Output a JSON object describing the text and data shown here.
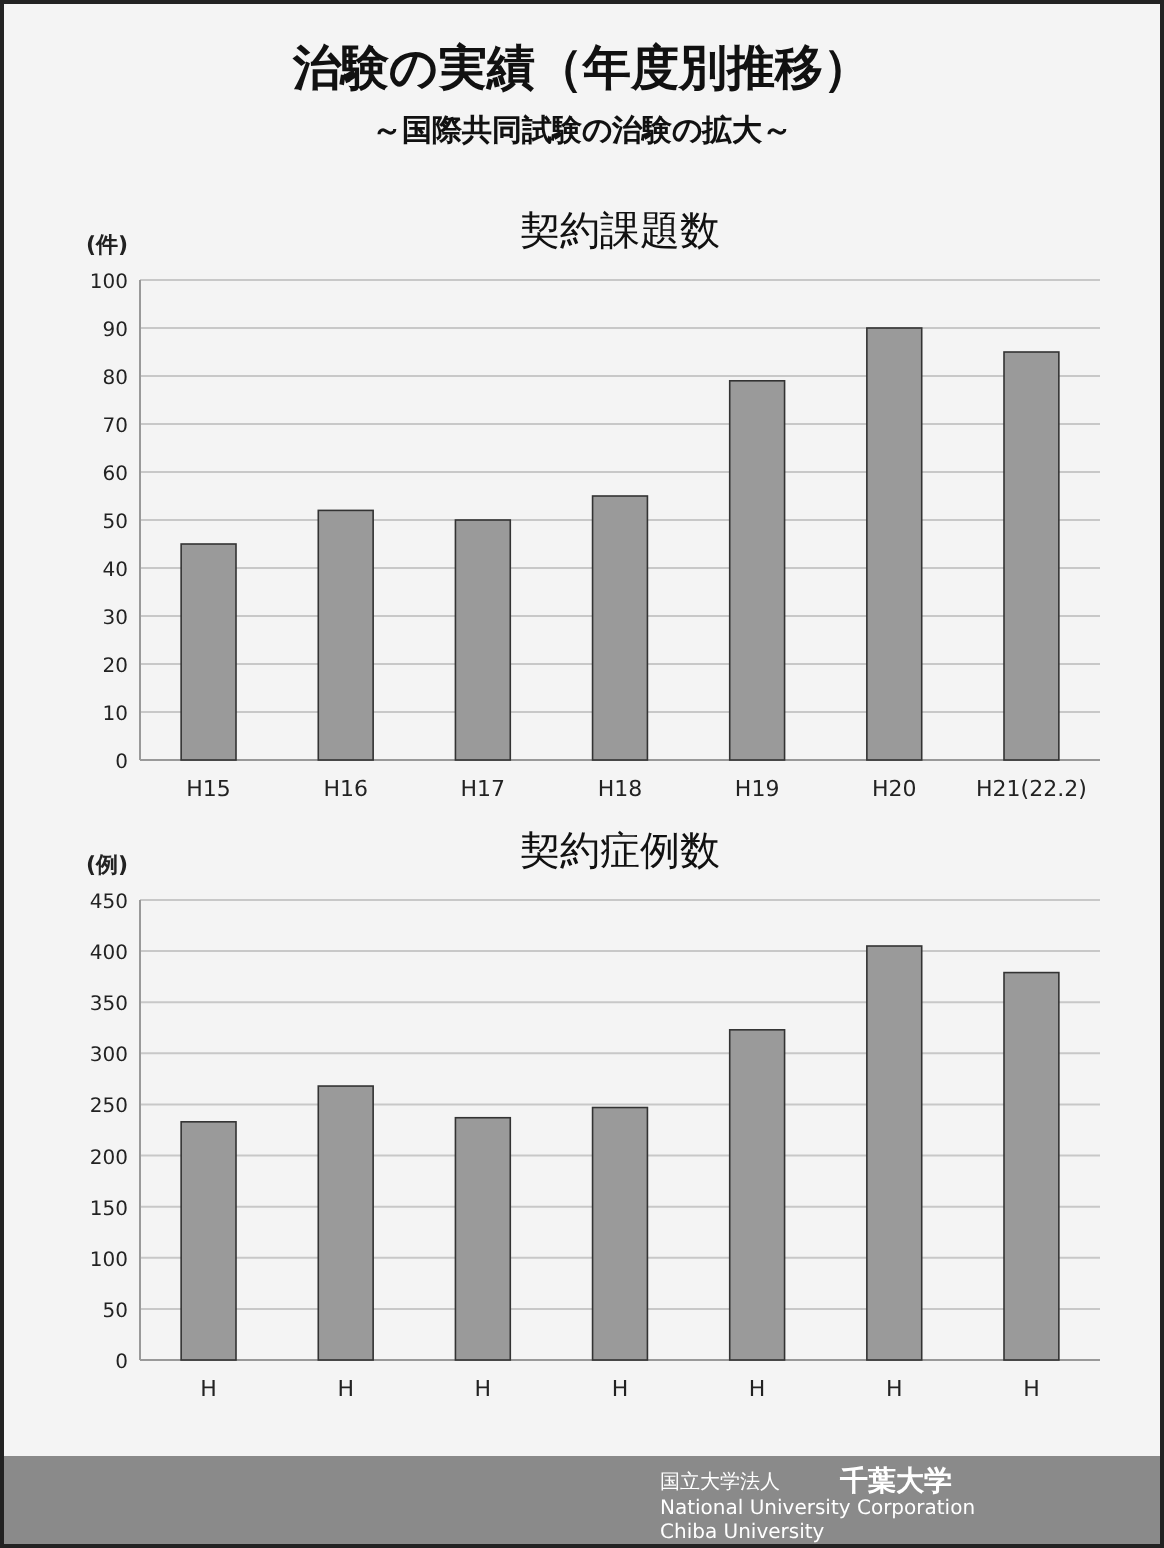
{
  "chart_data": [
    {
      "type": "bar",
      "title": "契約課題数",
      "subtitle": null,
      "ylabel": "(件)",
      "categories": [
        "H15",
        "H16",
        "H17",
        "H18",
        "H19",
        "H20",
        "H21(22.2)"
      ],
      "values": [
        45,
        52,
        50,
        55,
        79,
        90,
        85
      ],
      "color": "#9a9a9a",
      "ylim": [
        0,
        100
      ],
      "yticks": [
        0,
        10,
        20,
        30,
        40,
        50,
        60,
        70,
        80,
        90,
        100
      ],
      "grid": "y"
    },
    {
      "type": "bar",
      "title": "契約症例数",
      "ylabel": "(例)",
      "categories": [
        "H",
        "H",
        "H",
        "H",
        "H",
        "H",
        "H"
      ],
      "values": [
        233,
        268,
        237,
        247,
        323,
        405,
        379
      ],
      "color": "#9a9a9a",
      "ylim": [
        0,
        450
      ],
      "yticks": [
        0,
        50,
        100,
        150,
        200,
        250,
        300,
        350,
        400,
        450
      ],
      "grid": "y",
      "annotations": [
        "治験の実績（年度別推移）",
        "～国際共同試験の治験の拡大～",
        "国立大学法人",
        "National University Corporation",
        "千葉大学",
        "Chiba University"
      ]
    }
  ]
}
